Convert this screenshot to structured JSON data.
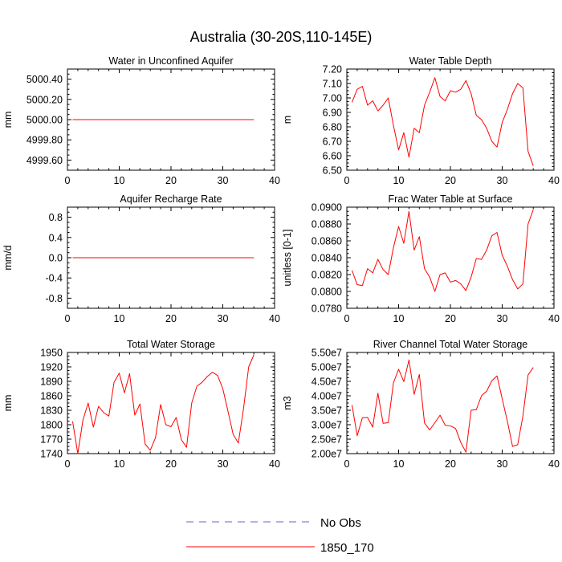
{
  "figure": {
    "title": "Australia (30-20S,110-145E)",
    "colors": {
      "model": "#ff0000",
      "obs": "#6666cc",
      "axis": "#000000"
    },
    "legend": {
      "placement": "bottom-center",
      "entries": [
        {
          "label": "No Obs",
          "style": "dashed",
          "color": "#6666cc"
        },
        {
          "label": "1850_170",
          "style": "solid",
          "color": "#ff0000"
        }
      ]
    }
  },
  "chart_data": [
    {
      "type": "line",
      "title": "Water in Unconfined Aquifer",
      "ylabel": "mm",
      "xlim": [
        0,
        40
      ],
      "xticks": [
        "0",
        "10",
        "20",
        "30",
        "40"
      ],
      "ylim": [
        4999.5,
        5000.5
      ],
      "ytick_values": [
        4999.6,
        4999.8,
        5000.0,
        5000.2,
        5000.4
      ],
      "ytick_labels": [
        "4999.60",
        "4999.80",
        "5000.00",
        "5000.20",
        "5000.40"
      ],
      "series": [
        {
          "name": "1850_170",
          "x": [
            1,
            36
          ],
          "values": [
            5000.0,
            5000.0
          ]
        }
      ]
    },
    {
      "type": "line",
      "title": "Water Table Depth",
      "ylabel": "m",
      "xlim": [
        0,
        40
      ],
      "xticks": [
        "0",
        "10",
        "20",
        "30",
        "40"
      ],
      "ylim": [
        6.5,
        7.2
      ],
      "ytick_values": [
        6.5,
        6.6,
        6.7,
        6.8,
        6.9,
        7.0,
        7.1,
        7.2
      ],
      "ytick_labels": [
        "6.50",
        "6.60",
        "6.70",
        "6.80",
        "6.90",
        "7.00",
        "7.10",
        "7.20"
      ],
      "series": [
        {
          "name": "1850_170",
          "x": [
            1,
            2,
            3,
            4,
            5,
            6,
            7,
            8,
            9,
            10,
            11,
            12,
            13,
            14,
            15,
            16,
            17,
            18,
            19,
            20,
            21,
            22,
            23,
            24,
            25,
            26,
            27,
            28,
            29,
            30,
            31,
            32,
            33,
            34,
            35,
            36
          ],
          "values": [
            6.97,
            7.06,
            7.08,
            6.95,
            6.98,
            6.91,
            6.95,
            7.0,
            6.81,
            6.64,
            6.76,
            6.59,
            6.79,
            6.76,
            6.95,
            7.04,
            7.14,
            7.01,
            6.98,
            7.05,
            7.04,
            7.06,
            7.12,
            7.03,
            6.88,
            6.85,
            6.79,
            6.7,
            6.66,
            6.83,
            6.92,
            7.03,
            7.1,
            7.07,
            6.63,
            6.53
          ]
        }
      ]
    },
    {
      "type": "line",
      "title": "Aquifer Recharge Rate",
      "ylabel": "mm/d",
      "xlim": [
        0,
        40
      ],
      "xticks": [
        "0",
        "10",
        "20",
        "30",
        "40"
      ],
      "ylim": [
        -1.0,
        1.0
      ],
      "ytick_values": [
        -0.8,
        -0.4,
        0.0,
        0.4,
        0.8
      ],
      "ytick_labels": [
        "-0.8",
        "-0.4",
        "0.0",
        "0.4",
        "0.8"
      ],
      "series": [
        {
          "name": "1850_170",
          "x": [
            1,
            36
          ],
          "values": [
            0.0,
            0.0
          ]
        }
      ]
    },
    {
      "type": "line",
      "title": "Frac Water Table at Surface",
      "ylabel": "unitless [0-1]",
      "xlim": [
        0,
        40
      ],
      "xticks": [
        "0",
        "10",
        "20",
        "30",
        "40"
      ],
      "ylim": [
        0.078,
        0.09
      ],
      "ytick_values": [
        0.078,
        0.08,
        0.082,
        0.084,
        0.086,
        0.088,
        0.09
      ],
      "ytick_labels": [
        "0.0780",
        "0.0800",
        "0.0820",
        "0.0840",
        "0.0860",
        "0.0880",
        "0.0900"
      ],
      "series": [
        {
          "name": "1850_170",
          "x": [
            1,
            2,
            3,
            4,
            5,
            6,
            7,
            8,
            9,
            10,
            11,
            12,
            13,
            14,
            15,
            16,
            17,
            18,
            19,
            20,
            21,
            22,
            23,
            24,
            25,
            26,
            27,
            28,
            29,
            30,
            31,
            32,
            33,
            34,
            35,
            36
          ],
          "values": [
            0.0825,
            0.0808,
            0.0807,
            0.0827,
            0.0822,
            0.0838,
            0.0826,
            0.082,
            0.0852,
            0.0877,
            0.0857,
            0.0895,
            0.0849,
            0.0865,
            0.0827,
            0.0817,
            0.08,
            0.082,
            0.0822,
            0.0811,
            0.0813,
            0.0809,
            0.0801,
            0.0817,
            0.0839,
            0.0838,
            0.0849,
            0.0866,
            0.087,
            0.0843,
            0.083,
            0.0814,
            0.0803,
            0.0809,
            0.088,
            0.0897
          ]
        }
      ]
    },
    {
      "type": "line",
      "title": "Total Water Storage",
      "ylabel": "mm",
      "xlim": [
        0,
        40
      ],
      "xticks": [
        "0",
        "10",
        "20",
        "30",
        "40"
      ],
      "ylim": [
        1740,
        1950
      ],
      "ytick_values": [
        1740,
        1770,
        1800,
        1830,
        1860,
        1890,
        1920,
        1950
      ],
      "ytick_labels": [
        "1740",
        "1770",
        "1800",
        "1830",
        "1860",
        "1890",
        "1920",
        "1950"
      ],
      "series": [
        {
          "name": "1850_170",
          "x": [
            1,
            2,
            3,
            4,
            5,
            6,
            7,
            8,
            9,
            10,
            11,
            12,
            13,
            14,
            15,
            16,
            17,
            18,
            19,
            20,
            21,
            22,
            23,
            24,
            25,
            26,
            27,
            28,
            29,
            30,
            31,
            32,
            33,
            34,
            35,
            36
          ],
          "values": [
            1807,
            1740,
            1810,
            1845,
            1795,
            1838,
            1825,
            1818,
            1888,
            1907,
            1866,
            1906,
            1820,
            1843,
            1760,
            1747,
            1773,
            1842,
            1800,
            1796,
            1815,
            1769,
            1753,
            1845,
            1880,
            1888,
            1900,
            1909,
            1902,
            1875,
            1828,
            1780,
            1762,
            1833,
            1920,
            1945
          ]
        }
      ]
    },
    {
      "type": "line",
      "title": "River Channel Total Water Storage",
      "ylabel": "m3",
      "xlim": [
        0,
        40
      ],
      "xticks": [
        "0",
        "10",
        "20",
        "30",
        "40"
      ],
      "ylim": [
        20000000,
        55000000
      ],
      "ytick_values": [
        20000000,
        25000000,
        30000000,
        35000000,
        40000000,
        45000000,
        50000000,
        55000000
      ],
      "ytick_labels": [
        "2.00e7",
        "2.50e7",
        "3.00e7",
        "3.50e7",
        "4.00e7",
        "4.50e7",
        "5.00e7",
        "5.50e7"
      ],
      "series": [
        {
          "name": "1850_170",
          "x": [
            1,
            2,
            3,
            4,
            5,
            6,
            7,
            8,
            9,
            10,
            11,
            12,
            13,
            14,
            15,
            16,
            17,
            18,
            19,
            20,
            21,
            22,
            23,
            24,
            25,
            26,
            27,
            28,
            29,
            30,
            31,
            32,
            33,
            34,
            35,
            36
          ],
          "values": [
            36800000,
            26200000,
            32400000,
            32500000,
            29200000,
            40900000,
            30500000,
            30700000,
            44500000,
            49200000,
            44900000,
            52400000,
            40500000,
            47400000,
            30600000,
            28200000,
            30700000,
            33300000,
            29800000,
            29600000,
            28700000,
            23900000,
            20500000,
            35000000,
            35200000,
            40000000,
            41600000,
            45200000,
            46900000,
            39000000,
            31200000,
            22500000,
            23100000,
            33000000,
            47200000,
            49800000
          ]
        }
      ]
    }
  ]
}
